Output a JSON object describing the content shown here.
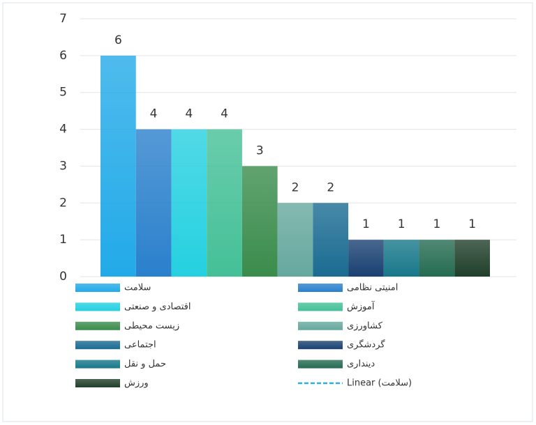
{
  "chart_data": {
    "type": "bar",
    "categories": [
      "سلامت",
      "امنیتی نظامی",
      "اقتصادی و صنعتی",
      "آموزش",
      "زیست محیطی",
      "کشاورزی",
      "اجتماعی",
      "گردشگری",
      "حمل و نقل",
      "دینداری",
      "ورزش"
    ],
    "values": [
      6,
      4,
      4,
      4,
      3,
      2,
      2,
      1,
      1,
      1,
      1
    ],
    "colors": [
      "#22aae8",
      "#2a80cc",
      "#25d0e0",
      "#44c097",
      "#3a8c4c",
      "#66a89e",
      "#1b6b92",
      "#1a4172",
      "#17788a",
      "#256b52",
      "#203f2a"
    ],
    "ylim": [
      0,
      7
    ],
    "yticks": [
      0,
      1,
      2,
      3,
      4,
      5,
      6,
      7
    ],
    "grid": true,
    "trendline": {
      "name": "Linear (سلامت)",
      "color": "#29aee8"
    }
  }
}
